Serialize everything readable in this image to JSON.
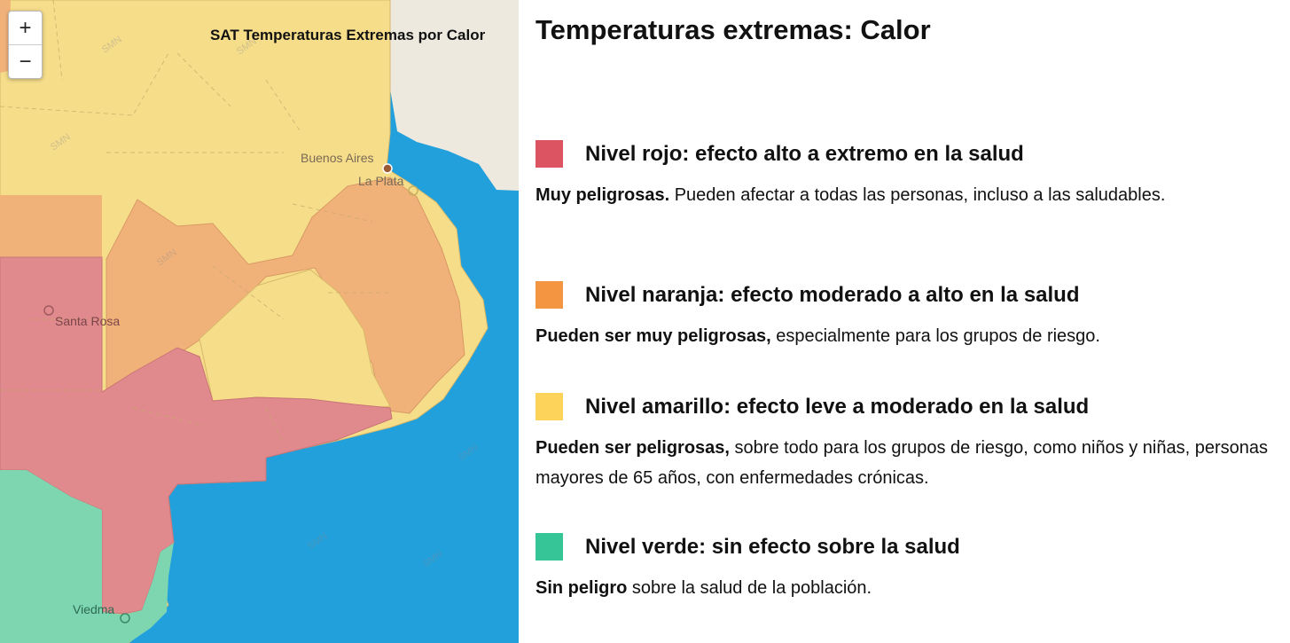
{
  "map": {
    "title": "SAT Temperaturas Extremas por Calor",
    "zoom_in": "+",
    "zoom_out": "−",
    "cities": [
      "Buenos Aires",
      "La Plata",
      "Santa Rosa",
      "Viedma"
    ],
    "watermark": "SMN",
    "colors": {
      "ocean": "#22a0dc",
      "land": "#ede9df",
      "yellow": "#f6dd8a",
      "orange": "#f1b27a",
      "red": "#e08a8e",
      "green": "#7ed6b0"
    }
  },
  "panel": {
    "title": "Temperaturas extremas: Calor",
    "levels": [
      {
        "color": "#dc5461",
        "heading": "Nivel rojo: efecto alto a extremo en la salud",
        "bold": "Muy peligrosas.",
        "text": " Pueden afectar a todas las personas, incluso a las saludables."
      },
      {
        "color": "#f39541",
        "heading": "Nivel naranja: efecto moderado a alto en la salud",
        "bold": "Pueden ser muy peligrosas,",
        "text": " especialmente para los grupos de riesgo."
      },
      {
        "color": "#fdd459",
        "heading": "Nivel amarillo: efecto leve a moderado en la salud",
        "bold": "Pueden ser peligrosas,",
        "text": " sobre todo para los grupos de riesgo, como niños y niñas, personas mayores de 65 años, con enfermedades crónicas."
      },
      {
        "color": "#35c596",
        "heading": "Nivel verde: sin efecto sobre la salud",
        "bold": "Sin peligro",
        "text": " sobre la salud de la población."
      }
    ]
  }
}
